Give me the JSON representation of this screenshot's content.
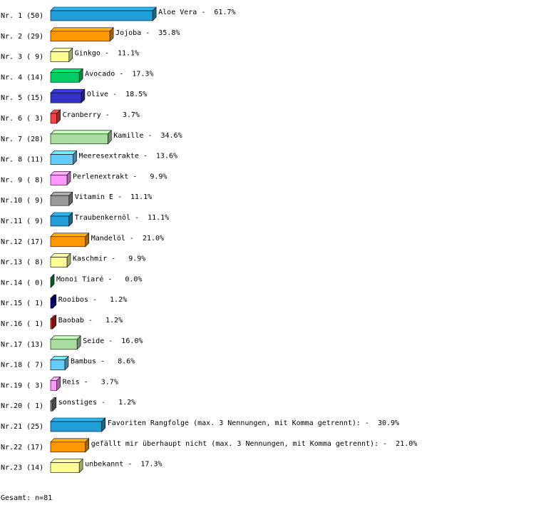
{
  "chart_data": {
    "type": "bar",
    "orientation": "horizontal",
    "categories": [
      "Nr. 1 (50)",
      "Nr. 2 (29)",
      "Nr. 3 ( 9)",
      "Nr. 4 (14)",
      "Nr. 5 (15)",
      "Nr. 6 ( 3)",
      "Nr. 7 (28)",
      "Nr. 8 (11)",
      "Nr. 9 ( 8)",
      "Nr.10 ( 9)",
      "Nr.11 ( 9)",
      "Nr.12 (17)",
      "Nr.13 ( 8)",
      "Nr.14 ( 0)",
      "Nr.15 ( 1)",
      "Nr.16 ( 1)",
      "Nr.17 (13)",
      "Nr.18 ( 7)",
      "Nr.19 ( 3)",
      "Nr.20 ( 1)",
      "Nr.21 (25)",
      "Nr.22 (17)",
      "Nr.23 (14)"
    ],
    "values": [
      61.7,
      35.8,
      11.1,
      17.3,
      18.5,
      3.7,
      34.6,
      13.6,
      9.9,
      11.1,
      11.1,
      21.0,
      9.9,
      0.0,
      1.2,
      1.2,
      16.0,
      8.6,
      3.7,
      1.2,
      30.9,
      21.0,
      17.3
    ],
    "value_labels": [
      "Aloe Vera -  61.7%",
      "Jojoba -  35.8%",
      "Ginkgo -  11.1%",
      "Avocado -  17.3%",
      "Olive -  18.5%",
      "Cranberry -   3.7%",
      "Kamille -  34.6%",
      "Meeresextrakte -  13.6%",
      "Perlenextrakt -   9.9%",
      "Vitamin E -  11.1%",
      "Traubenkernöl -  11.1%",
      "Mandelöl -  21.0%",
      "Kaschmir -   9.9%",
      "Monoi Tiaré -   0.0%",
      "Rooibos -   1.2%",
      "Baobab -   1.2%",
      "Seide -  16.0%",
      "Bambus -   8.6%",
      "Reis -   3.7%",
      "sonstiges -   1.2%",
      "Favoriten Rangfolge (max. 3 Nennungen, mit Komma getrennt): -  30.9%",
      "gefällt mir überhaupt nicht (max. 3 Nennungen, mit Komma getrennt): -  21.0%",
      "unbekannt -  17.3%"
    ],
    "colors": [
      "#1fa0d8",
      "#ff9900",
      "#ffff99",
      "#00cc66",
      "#3333cc",
      "#ee4444",
      "#aadda0",
      "#66ccff",
      "#ff99ff",
      "#999999",
      "#1fa0d8",
      "#ff9900",
      "#ffff99",
      "#008833",
      "#000099",
      "#cc2222",
      "#aadda0",
      "#66ccff",
      "#ff99ff",
      "#777777",
      "#1fa0d8",
      "#ff9900",
      "#ffff99"
    ],
    "footer": "Gesamt: n=81"
  }
}
